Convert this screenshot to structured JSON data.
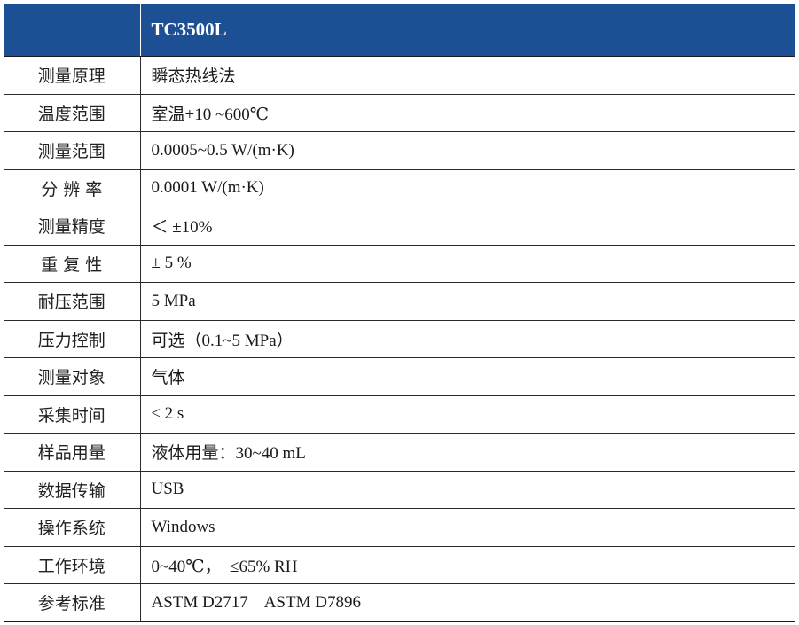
{
  "header": {
    "blank": "",
    "model": "TC3500L"
  },
  "rows": [
    {
      "label": "测量原理",
      "value": "瞬态热线法"
    },
    {
      "label": "温度范围",
      "value": "室温+10 ~600℃"
    },
    {
      "label": "测量范围",
      "value": "0.0005~0.5 W/(m·K)"
    },
    {
      "label": "分 辨 率",
      "value": "0.0001 W/(m·K)"
    },
    {
      "label": "测量精度",
      "value": "＜ ±10%"
    },
    {
      "label": "重 复 性",
      "value": "± 5 %"
    },
    {
      "label": "耐压范围",
      "value": "5 MPa"
    },
    {
      "label": "压力控制",
      "value": "可选（0.1~5 MPa）"
    },
    {
      "label": "测量对象",
      "value": "气体"
    },
    {
      "label": "采集时间",
      "value": "≤ 2 s"
    },
    {
      "label": "样品用量",
      "value": "液体用量：30~40 mL"
    },
    {
      "label": "数据传输",
      "value": "USB"
    },
    {
      "label": "操作系统",
      "value": "Windows"
    },
    {
      "label": "工作环境",
      "value": "0~40℃，  ≤65% RH"
    },
    {
      "label": "参考标准",
      "value": "ASTM D2717    ASTM D7896"
    }
  ],
  "colors": {
    "header_bg": "#1d4f95",
    "header_text": "#ffffff",
    "border": "#2a2a2a"
  }
}
